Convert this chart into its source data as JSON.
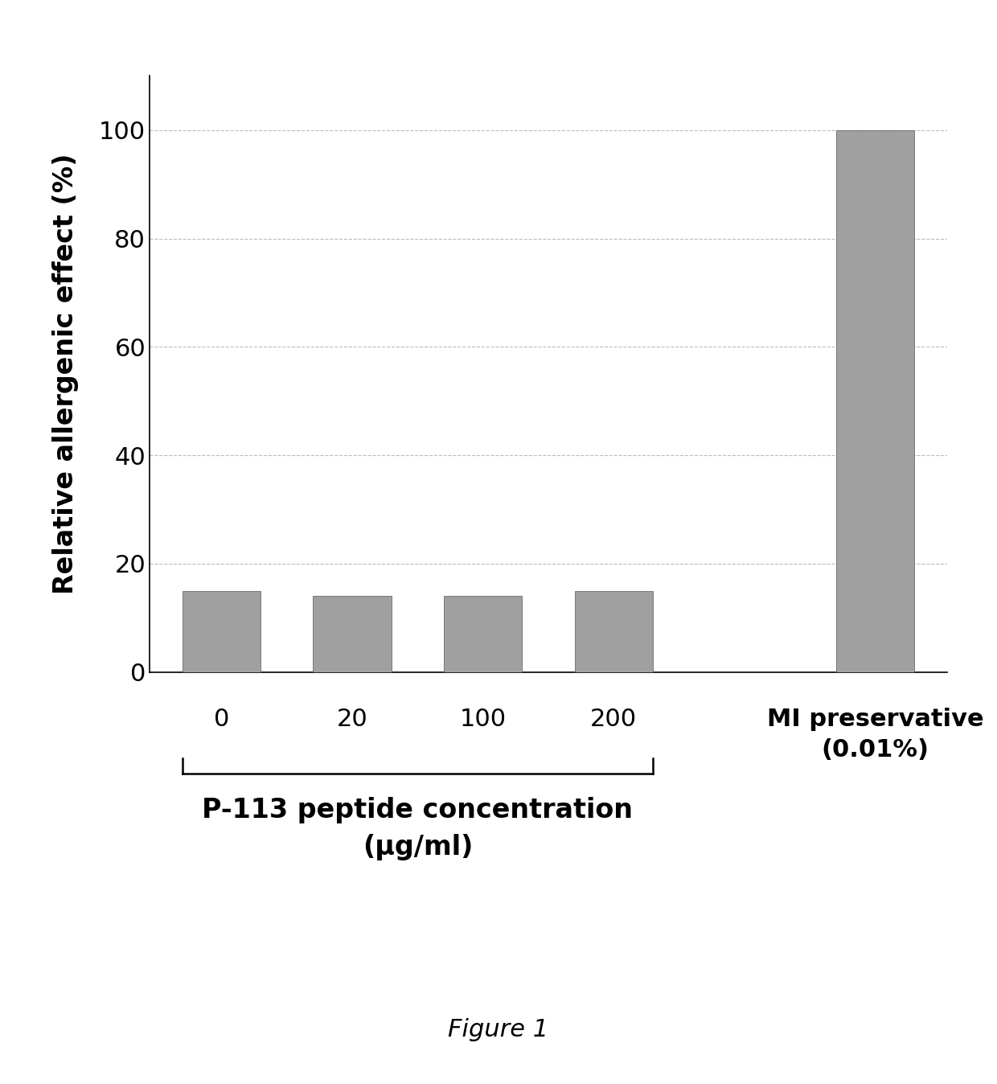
{
  "values": [
    15,
    14,
    14,
    15,
    100
  ],
  "bar_color": "#a0a0a0",
  "bar_edge_color": "#555555",
  "ylabel": "Relative allergenic effect (%)",
  "ylim": [
    0,
    110
  ],
  "yticks": [
    0,
    20,
    40,
    60,
    80,
    100
  ],
  "grid_color": "#bbbbbb",
  "background_color": "#ffffff",
  "bar_width": 0.6,
  "x_positions": [
    0,
    1,
    2,
    3,
    5
  ],
  "peptide_labels": [
    "0",
    "20",
    "100",
    "200"
  ],
  "mi_label": "MI preservative\n(0.01%)",
  "bracket_label_line1": "P-113 peptide concentration",
  "bracket_label_line2": "(μg/ml)",
  "figure_caption": "Figure 1",
  "ylabel_fontsize": 24,
  "tick_fontsize": 22,
  "mi_fontsize": 22,
  "xlabel_fontsize": 24,
  "caption_fontsize": 22,
  "xlim": [
    -0.55,
    5.55
  ]
}
